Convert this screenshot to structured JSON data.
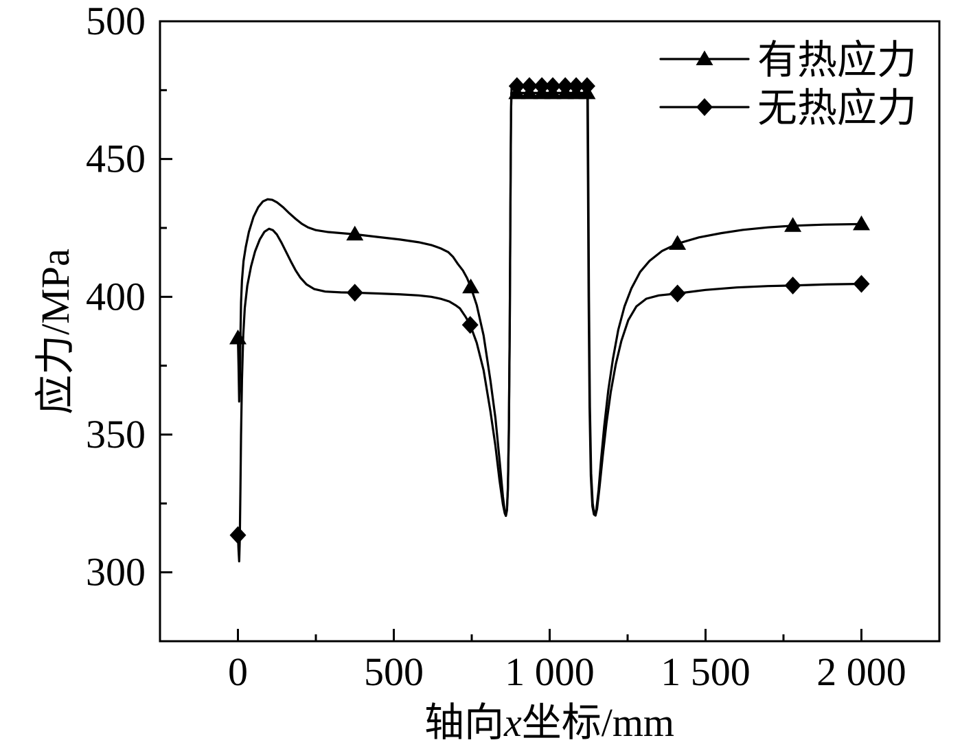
{
  "chart_data": {
    "type": "line",
    "xlabel": "轴向x坐标/mm",
    "ylabel": "应力/MPa",
    "xlim": [
      -250,
      2250
    ],
    "ylim": [
      275,
      500
    ],
    "x_ticks": [
      0,
      500,
      1000,
      1500,
      2000
    ],
    "x_tick_labels": [
      "0",
      "500",
      "1 000",
      "1 500",
      "2 000"
    ],
    "x_minor_ticks": [
      250,
      750,
      1250,
      1750
    ],
    "y_ticks": [
      300,
      350,
      400,
      450,
      500
    ],
    "y_tick_labels": [
      "300",
      "350",
      "400",
      "450",
      "500"
    ],
    "y_minor_ticks": [
      325,
      375,
      425,
      475
    ],
    "grid": false,
    "legend_position": "top-right",
    "series": [
      {
        "name": "有热应力",
        "marker": "triangle",
        "color": "#000000",
        "x": [
          0,
          2,
          4,
          6,
          8,
          10,
          13,
          18,
          25,
          35,
          50,
          65,
          80,
          95,
          110,
          125,
          145,
          165,
          185,
          205,
          225,
          250,
          290,
          375,
          450,
          520,
          580,
          620,
          650,
          675,
          690,
          705,
          722,
          735,
          747,
          766,
          788,
          810,
          826,
          839,
          850,
          856,
          859.5,
          863,
          866,
          869,
          872,
          874,
          876,
          877,
          1121,
          1123,
          1125,
          1128,
          1132,
          1137,
          1142,
          1145.5,
          1150,
          1157,
          1165,
          1175,
          1188,
          1203,
          1220,
          1240,
          1262,
          1290,
          1320,
          1360,
          1410,
          1480,
          1550,
          1620,
          1700,
          1780,
          1880,
          2000
        ],
        "y": [
          385,
          375,
          362,
          368,
          385,
          398,
          406,
          413,
          418,
          423.5,
          429,
          432.5,
          434.6,
          435.4,
          435.2,
          434.3,
          432.5,
          430.3,
          428.3,
          426.5,
          425.2,
          424.2,
          423.5,
          422.7,
          421.7,
          420.8,
          419.8,
          418.8,
          417.6,
          416.2,
          414.5,
          412,
          409.5,
          406.8,
          403.5,
          397,
          386,
          369.6,
          356,
          341,
          327.5,
          322,
          320.5,
          322.5,
          330,
          350,
          390,
          430,
          465,
          474,
          474,
          440,
          400,
          360,
          335,
          324,
          321,
          320.8,
          323,
          330,
          341,
          353,
          366,
          377.5,
          388,
          396.5,
          403,
          409,
          413,
          416.6,
          419.3,
          421.6,
          423.1,
          424.3,
          425.2,
          425.8,
          426.2,
          426.4
        ],
        "marker_x": [
          0,
          375,
          747,
          895,
          935,
          975,
          1010,
          1050,
          1085,
          1120,
          1410,
          1780,
          2000
        ],
        "marker_y": [
          385,
          422.7,
          403.5,
          474,
          474,
          474,
          474,
          474,
          474,
          474,
          419.3,
          425.8,
          426.4
        ]
      },
      {
        "name": "无热应力",
        "marker": "diamond",
        "color": "#000000",
        "x": [
          0,
          2,
          4,
          6,
          8,
          10,
          13,
          17,
          22,
          30,
          42,
          55,
          70,
          85,
          100,
          112,
          125,
          140,
          155,
          170,
          185,
          200,
          220,
          245,
          280,
          330,
          375,
          450,
          520,
          580,
          620,
          650,
          678,
          700,
          712,
          730,
          745,
          766,
          788,
          810,
          826,
          839,
          850,
          856,
          859.5,
          863,
          866,
          869,
          872,
          874,
          876,
          878,
          1122,
          1124,
          1126,
          1129,
          1133,
          1138,
          1143,
          1147,
          1152,
          1160,
          1170,
          1182,
          1196,
          1212,
          1230,
          1252,
          1278,
          1310,
          1350,
          1410,
          1500,
          1600,
          1700,
          1780,
          1890,
          2000
        ],
        "y": [
          313.5,
          308,
          304,
          312,
          330,
          350,
          370,
          386,
          396,
          404,
          411,
          416.5,
          420.8,
          423.6,
          424.7,
          424.2,
          422.6,
          419.6,
          416.2,
          412.8,
          409.6,
          407,
          404.5,
          402.8,
          401.9,
          401.6,
          401.5,
          401.2,
          400.9,
          400.5,
          400,
          399.3,
          398.3,
          396.8,
          395.8,
          392.8,
          389.8,
          383.3,
          373.4,
          358.4,
          345.9,
          333.5,
          324.7,
          321.4,
          320.5,
          323,
          331,
          352,
          390,
          432,
          467,
          476.5,
          476.5,
          440,
          400,
          360,
          336,
          325,
          321.2,
          320.6,
          323,
          331,
          342,
          354,
          365.5,
          375.5,
          384,
          391.5,
          396.5,
          399.3,
          400.5,
          401.2,
          402.5,
          403.4,
          403.9,
          404.1,
          404.5,
          404.7
        ],
        "marker_x": [
          0,
          375,
          745,
          895,
          935,
          975,
          1010,
          1050,
          1085,
          1120,
          1410,
          1780,
          2000
        ],
        "marker_y": [
          313.5,
          401.5,
          389.8,
          476.5,
          476.5,
          476.5,
          476.5,
          476.5,
          476.5,
          476.5,
          401.2,
          404.1,
          404.7
        ]
      }
    ]
  }
}
